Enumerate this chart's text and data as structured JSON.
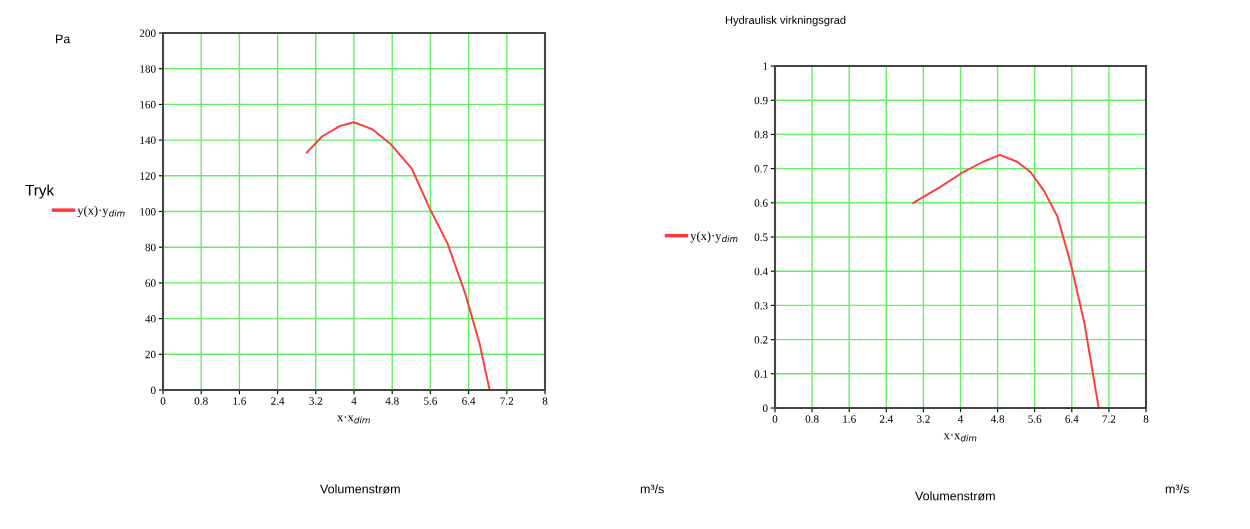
{
  "chart_data": [
    {
      "type": "line",
      "ylabel": "Tryk",
      "xlabel": "x·x$_{dim}$",
      "annotations": [
        "Pa",
        "Volumenstrøm",
        "m³/s"
      ],
      "series": [
        {
          "name": "y(x)·y$_{dim}$",
          "color": "#ff3b3b",
          "x": [
            3.01,
            3.33,
            3.71,
            4.0,
            4.39,
            4.76,
            5.21,
            5.58,
            5.96,
            6.33,
            6.63,
            6.84
          ],
          "values": [
            133,
            142,
            148,
            150,
            146,
            138,
            124,
            102,
            82,
            54,
            26,
            0
          ]
        }
      ],
      "xlim": [
        0,
        8
      ],
      "xticks": [
        0,
        0.8,
        1.6,
        2.4,
        3.2,
        4,
        4.8,
        5.6,
        6.4,
        7.2,
        8
      ],
      "ylim": [
        0,
        200
      ],
      "yticks": [
        0,
        20,
        40,
        60,
        80,
        100,
        120,
        140,
        160,
        180,
        200
      ],
      "grid": true,
      "legend": "left",
      "marker": "none",
      "line_style": "solid"
    },
    {
      "type": "line",
      "title": "Hydraulisk virkningsgrad",
      "xlabel": "x·x$_{dim}$",
      "annotations": [
        "Volumenstrøm",
        "m³/s"
      ],
      "series": [
        {
          "name": "y(x)·y$_{dim}$",
          "color": "#ff3b3b",
          "x": [
            2.98,
            3.55,
            4.06,
            4.49,
            4.85,
            5.22,
            5.51,
            5.8,
            6.09,
            6.38,
            6.67,
            6.98
          ],
          "values": [
            0.6,
            0.645,
            0.69,
            0.72,
            0.74,
            0.72,
            0.69,
            0.635,
            0.56,
            0.42,
            0.25,
            0
          ]
        }
      ],
      "xlim": [
        0,
        8
      ],
      "xticks": [
        0,
        0.8,
        1.6,
        2.4,
        3.2,
        4,
        4.8,
        5.6,
        6.4,
        7.2,
        8
      ],
      "ylim": [
        0,
        1
      ],
      "yticks": [
        0,
        0.1,
        0.2,
        0.3,
        0.4,
        0.5,
        0.6,
        0.7,
        0.8,
        0.9,
        1
      ],
      "grid": true,
      "legend": "left",
      "marker": "none",
      "line_style": "solid"
    }
  ]
}
